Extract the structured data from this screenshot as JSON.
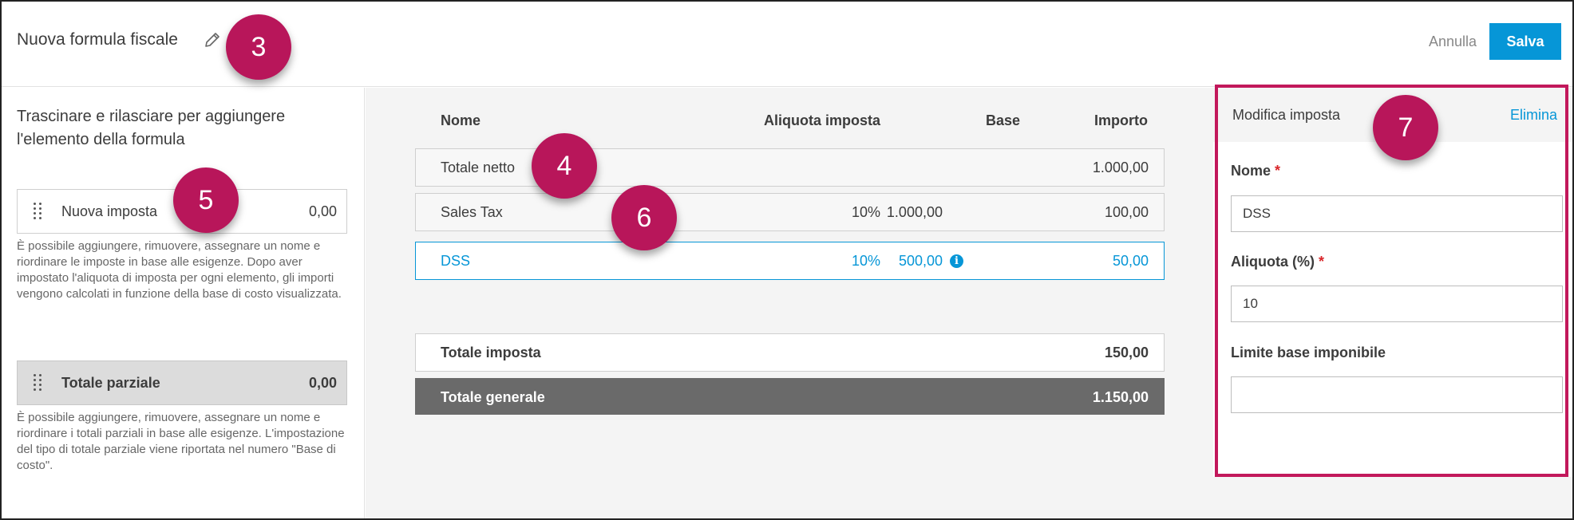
{
  "header": {
    "title": "Nuova formula fiscale",
    "cancel_label": "Annulla",
    "save_label": "Salva"
  },
  "left": {
    "heading": "Trascinare e rilasciare per aggiungere l'elemento della formula",
    "tax_item": {
      "label": "Nuova imposta",
      "value": "0,00"
    },
    "tax_help": "È possibile aggiungere, rimuovere, assegnare un nome e riordinare le imposte in base alle esigenze. Dopo aver impostato l'aliquota di imposta per ogni elemento, gli importi vengono calcolati in funzione della base di costo visualizzata.",
    "subtotal_item": {
      "label": "Totale parziale",
      "value": "0,00"
    },
    "subtotal_help": "È possibile aggiungere, rimuovere, assegnare un nome e riordinare i totali parziali in base alle esigenze. L'impostazione del tipo di totale parziale viene riportata nel numero \"Base di costo\"."
  },
  "table": {
    "columns": {
      "name": "Nome",
      "rate": "Aliquota imposta",
      "base": "Base",
      "amount": "Importo"
    },
    "rows": [
      {
        "name": "Totale netto",
        "rate": "",
        "base": "",
        "amount": "1.000,00"
      },
      {
        "name": "Sales Tax",
        "rate": "10%",
        "base": "1.000,00",
        "amount": "100,00"
      },
      {
        "name": "DSS",
        "rate": "10%",
        "base": "500,00",
        "amount": "50,00"
      }
    ],
    "info_glyph": "i",
    "total_tax": {
      "label": "Totale imposta",
      "value": "150,00"
    },
    "grand_total": {
      "label": "Totale generale",
      "value": "1.150,00"
    }
  },
  "panel": {
    "title": "Modifica imposta",
    "delete_label": "Elimina",
    "fields": {
      "name": {
        "label": "Nome",
        "required_mark": "*",
        "value": "DSS"
      },
      "rate": {
        "label": "Aliquota (%)",
        "required_mark": "*",
        "value": "10"
      },
      "limit": {
        "label": "Limite base imponibile",
        "value": ""
      }
    }
  },
  "annotations": {
    "badge_3": "3",
    "badge_4": "4",
    "badge_5": "5",
    "badge_6": "6",
    "badge_7": "7",
    "highlight_color": "#c2185b"
  },
  "colors": {
    "accent": "#0696d7",
    "badge": "#b8165a",
    "required": "#d9262a",
    "grand_total_bg": "#6a6a6a"
  },
  "icons": {
    "edit": "pencil-icon",
    "grip": "drag-handle-icon",
    "info": "info-icon"
  }
}
